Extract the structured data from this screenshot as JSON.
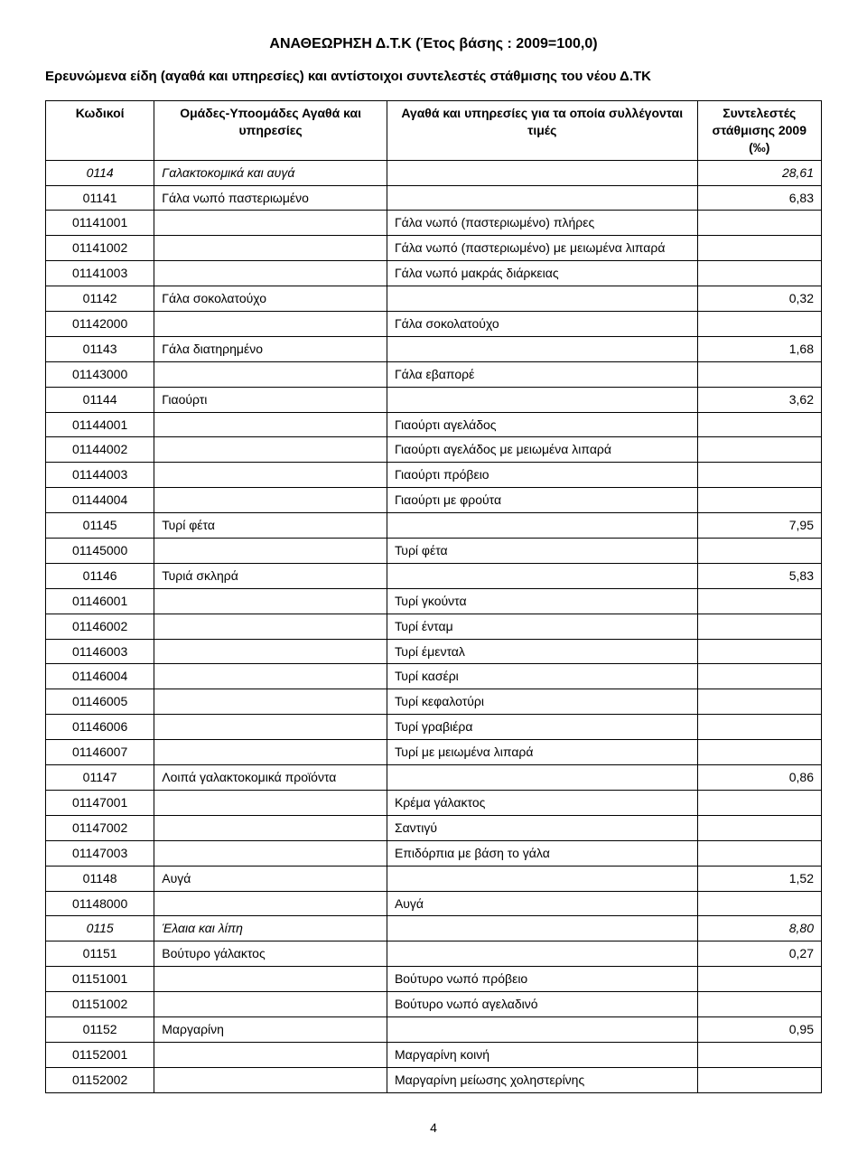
{
  "title": "ΑΝΑΘΕΩΡΗΣΗ Δ.Τ.Κ (Έτος βάσης : 2009=100,0)",
  "subtitle": "Ερευνώμενα είδη (αγαθά και υπηρεσίες) και αντίστοιχοι συντελεστές στάθμισης του νέου Δ.ΤΚ",
  "headers": {
    "code": "Κωδικοί",
    "group": "Ομάδες-Υποομάδες Αγαθά και υπηρεσίες",
    "item": "Αγαθά και υπηρεσίες για τα οποία συλλέγονται τιμές",
    "weight": "Συντελεστές στάθμισης 2009 (‰)"
  },
  "rows": [
    {
      "code": "0114",
      "group": "Γαλακτοκομικά και αυγά",
      "item": "",
      "weight": "28,61",
      "italic": true
    },
    {
      "code": "01141",
      "group": "Γάλα νωπό παστεριωμένο",
      "item": "",
      "weight": "6,83"
    },
    {
      "code": "01141001",
      "group": "",
      "item": "Γάλα νωπό (παστεριωμένο) πλήρες",
      "weight": ""
    },
    {
      "code": "01141002",
      "group": "",
      "item": "Γάλα νωπό (παστεριωμένο) με μειωμένα λιπαρά",
      "weight": ""
    },
    {
      "code": "01141003",
      "group": "",
      "item": "Γάλα νωπό μακράς διάρκειας",
      "weight": ""
    },
    {
      "code": "01142",
      "group": "Γάλα σοκολατούχο",
      "item": "",
      "weight": "0,32"
    },
    {
      "code": "01142000",
      "group": "",
      "item": "Γάλα σοκολατούχο",
      "weight": ""
    },
    {
      "code": "01143",
      "group": "Γάλα διατηρημένο",
      "item": "",
      "weight": "1,68"
    },
    {
      "code": "01143000",
      "group": "",
      "item": "Γάλα εβαπορέ",
      "weight": ""
    },
    {
      "code": "01144",
      "group": "Γιαούρτι",
      "item": "",
      "weight": "3,62"
    },
    {
      "code": "01144001",
      "group": "",
      "item": "Γιαούρτι αγελάδος",
      "weight": ""
    },
    {
      "code": "01144002",
      "group": "",
      "item": "Γιαούρτι αγελάδος με μειωμένα λιπαρά",
      "weight": ""
    },
    {
      "code": "01144003",
      "group": "",
      "item": "Γιαούρτι πρόβειο",
      "weight": ""
    },
    {
      "code": "01144004",
      "group": "",
      "item": "Γιαούρτι με φρούτα",
      "weight": ""
    },
    {
      "code": "01145",
      "group": "Τυρί φέτα",
      "item": "",
      "weight": "7,95"
    },
    {
      "code": "01145000",
      "group": "",
      "item": "Τυρί φέτα",
      "weight": ""
    },
    {
      "code": "01146",
      "group": "Τυριά σκληρά",
      "item": "",
      "weight": "5,83"
    },
    {
      "code": "01146001",
      "group": "",
      "item": "Τυρί γκούντα",
      "weight": ""
    },
    {
      "code": "01146002",
      "group": "",
      "item": "Τυρί ένταμ",
      "weight": ""
    },
    {
      "code": "01146003",
      "group": "",
      "item": "Τυρί έμενταλ",
      "weight": ""
    },
    {
      "code": "01146004",
      "group": "",
      "item": "Τυρί κασέρι",
      "weight": ""
    },
    {
      "code": "01146005",
      "group": "",
      "item": "Τυρί κεφαλοτύρι",
      "weight": ""
    },
    {
      "code": "01146006",
      "group": "",
      "item": "Τυρί γραβιέρα",
      "weight": ""
    },
    {
      "code": "01146007",
      "group": "",
      "item": "Τυρί με μειωμένα λιπαρά",
      "weight": ""
    },
    {
      "code": "01147",
      "group": "Λοιπά γαλακτοκομικά προϊόντα",
      "item": "",
      "weight": "0,86"
    },
    {
      "code": "01147001",
      "group": "",
      "item": "Κρέμα γάλακτος",
      "weight": ""
    },
    {
      "code": "01147002",
      "group": "",
      "item": "Σαντιγύ",
      "weight": ""
    },
    {
      "code": "01147003",
      "group": "",
      "item": "Επιδόρπια με βάση το γάλα",
      "weight": ""
    },
    {
      "code": "01148",
      "group": "Αυγά",
      "item": "",
      "weight": "1,52"
    },
    {
      "code": "01148000",
      "group": "",
      "item": "Αυγά",
      "weight": ""
    },
    {
      "code": "0115",
      "group": "Έλαια και λίπη",
      "item": "",
      "weight": "8,80",
      "italic": true
    },
    {
      "code": "01151",
      "group": "Βούτυρο γάλακτος",
      "item": "",
      "weight": "0,27"
    },
    {
      "code": "01151001",
      "group": "",
      "item": "Βούτυρο νωπό πρόβειο",
      "weight": ""
    },
    {
      "code": "01151002",
      "group": "",
      "item": "Βούτυρο νωπό αγελαδινό",
      "weight": ""
    },
    {
      "code": "01152",
      "group": "Μαργαρίνη",
      "item": "",
      "weight": "0,95"
    },
    {
      "code": "01152001",
      "group": "",
      "item": "Μαργαρίνη κοινή",
      "weight": ""
    },
    {
      "code": "01152002",
      "group": "",
      "item": "Μαργαρίνη μείωσης χοληστερίνης",
      "weight": ""
    }
  ],
  "page_number": "4"
}
